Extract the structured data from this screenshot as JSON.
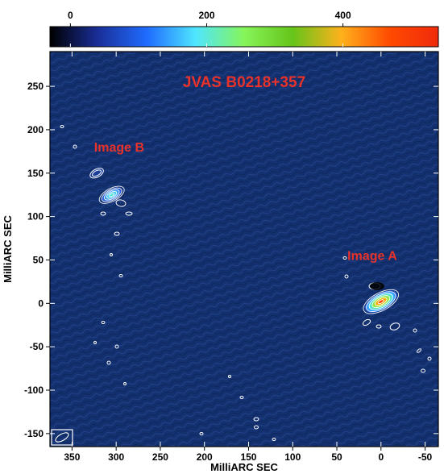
{
  "chart_data": {
    "type": "heatmap",
    "title": "JVAS B0218+357",
    "xlabel": "MilliARC SEC",
    "ylabel": "MilliARC SEC",
    "x_axis_reversed": true,
    "xlim": [
      375,
      -65
    ],
    "ylim": [
      -165,
      290
    ],
    "x_ticks": [
      350,
      300,
      250,
      200,
      150,
      100,
      50,
      0,
      -50
    ],
    "y_ticks": [
      250,
      200,
      150,
      100,
      50,
      0,
      -50,
      -100,
      -150
    ],
    "colorbar": {
      "range": [
        -30,
        540
      ],
      "ticks": [
        0,
        200,
        400
      ],
      "colors": [
        "#000000",
        "#1a2f9a",
        "#1f6cff",
        "#4fe6ff",
        "#86f55a",
        "#66c419",
        "#ffb11c",
        "#ff4a00",
        "#f02a0c"
      ]
    },
    "background_color": "#13306f",
    "annotation_color": "#e8322a",
    "annotations": [
      {
        "text": "Image B",
        "x": 325,
        "y": 175
      },
      {
        "text": "Image A",
        "x": 38,
        "y": 50
      }
    ],
    "components": [
      {
        "label": "Image A",
        "x": 0,
        "y": 2,
        "peak": 540
      },
      {
        "label": "Image B",
        "x": 305,
        "y": 125,
        "peak": 200
      },
      {
        "label": "Image B",
        "x": 322,
        "y": 150,
        "peak": 15
      }
    ]
  }
}
